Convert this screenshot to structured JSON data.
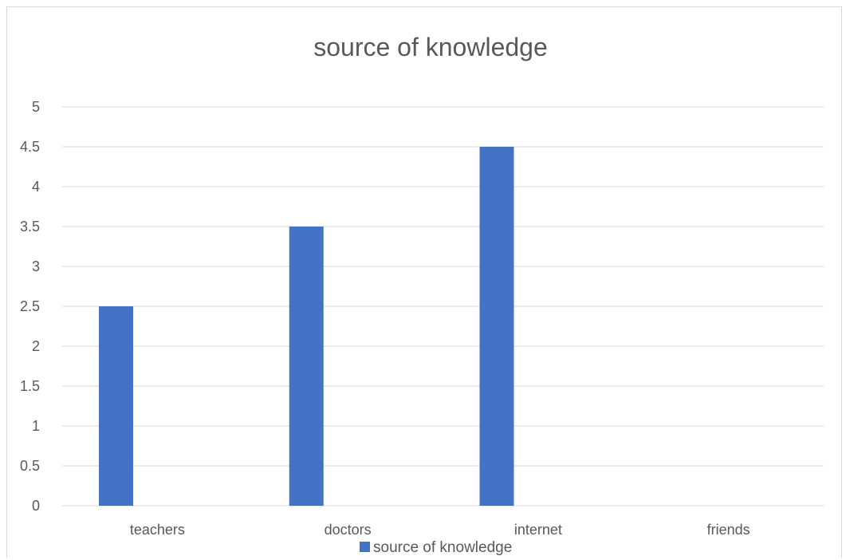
{
  "chart_data": {
    "type": "bar",
    "title": "source of knowledge",
    "categories": [
      "teachers",
      "doctors",
      "internet",
      "friends"
    ],
    "series": [
      {
        "name": "source of knowledge",
        "values": [
          2.5,
          3.5,
          4.5,
          0
        ],
        "color": "#4472c4"
      }
    ],
    "xlabel": "",
    "ylabel": "",
    "ylim": [
      0,
      5
    ],
    "yticks": [
      "0",
      "0.5",
      "1",
      "1.5",
      "2",
      "2.5",
      "3",
      "3.5",
      "4",
      "4.5",
      "5"
    ],
    "grid": true,
    "legend_position": "bottom"
  }
}
